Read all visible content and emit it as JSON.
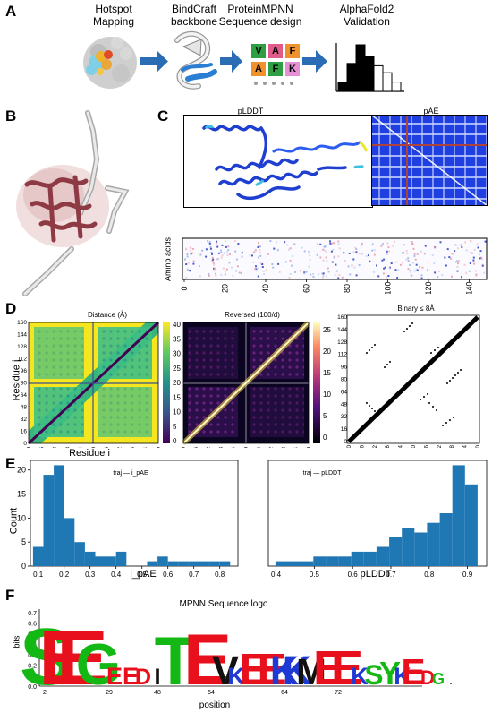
{
  "panels": {
    "a": "A",
    "b": "B",
    "c": "C",
    "d": "D",
    "e": "E",
    "f": "F"
  },
  "pipeline": {
    "steps": [
      {
        "line1": "Hotspot",
        "line2": "Mapping"
      },
      {
        "line1": "BindCraft",
        "line2": "backbone"
      },
      {
        "line1": "ProteinMPNN",
        "line2": "Sequence design"
      },
      {
        "line1": "AlphaFold2",
        "line2": "Validation"
      }
    ],
    "seq_letters": [
      {
        "ch": "V",
        "color": "#2ea043"
      },
      {
        "ch": "A",
        "color": "#e05a8a"
      },
      {
        "ch": "F",
        "color": "#f0922b"
      },
      {
        "ch": "A",
        "color": "#f0922b"
      },
      {
        "ch": "F",
        "color": "#2ea043"
      },
      {
        "ch": "K",
        "color": "#e58fd4"
      }
    ],
    "hist_values": [
      0.2,
      0.6,
      1.0,
      0.75,
      0.55,
      0.4,
      0.2
    ]
  },
  "panel_c": {
    "plddt_title": "pLDDT",
    "pae_title": "pAE",
    "aa_ylabel": "Amino acids",
    "aa_xticks": [
      "0",
      "20",
      "40",
      "60",
      "80",
      "100",
      "120",
      "140"
    ]
  },
  "panel_d": {
    "titles": [
      "Distance (Å)",
      "Reversed (100/d)",
      "Binary ≤ 8Å"
    ],
    "ticks": [
      "0",
      "16",
      "32",
      "48",
      "64",
      "80",
      "96",
      "112",
      "128",
      "144",
      "160"
    ],
    "cbar1": [
      "40",
      "35",
      "30",
      "25",
      "20",
      "15",
      "10",
      "5",
      "0"
    ],
    "cbar2": [
      "25",
      "20",
      "15",
      "10",
      "5",
      "0"
    ],
    "ylabel": "Residue j",
    "xlabel": "Residue i"
  },
  "chart_data": [
    {
      "type": "bar",
      "title": "",
      "legend": "traj — i_pAE",
      "xlabel": "i_pAE",
      "ylabel": "Count",
      "xlim": [
        0.07,
        0.87
      ],
      "ylim": [
        0,
        22
      ],
      "bin_width": 0.04,
      "x": [
        0.1,
        0.14,
        0.18,
        0.22,
        0.26,
        0.3,
        0.34,
        0.38,
        0.42,
        0.46,
        0.5,
        0.54,
        0.58,
        0.62,
        0.66,
        0.7,
        0.74,
        0.78,
        0.82
      ],
      "values": [
        4,
        19,
        21,
        10,
        5,
        3,
        2,
        2,
        3,
        0,
        0,
        1,
        2,
        1,
        1,
        1,
        1,
        1,
        1
      ],
      "xticks": [
        "0.1",
        "0.2",
        "0.3",
        "0.4",
        "0.5",
        "0.6",
        "0.7",
        "0.8"
      ],
      "yticks": [
        "0",
        "5",
        "10",
        "15",
        "20"
      ],
      "color": "#1f77b4"
    },
    {
      "type": "bar",
      "title": "",
      "legend": "traj — pLDDT",
      "xlabel": "pLDDT",
      "ylabel": "",
      "xlim": [
        0.38,
        0.95
      ],
      "ylim": [
        0,
        22
      ],
      "bin_width": 0.033,
      "x": [
        0.415,
        0.448,
        0.481,
        0.514,
        0.547,
        0.58,
        0.613,
        0.646,
        0.679,
        0.712,
        0.745,
        0.778,
        0.811,
        0.844,
        0.877,
        0.91
      ],
      "values": [
        1,
        1,
        1,
        2,
        2,
        2,
        3,
        3,
        4,
        6,
        8,
        7,
        9,
        11,
        21,
        17
      ],
      "xticks": [
        "0.4",
        "0.5",
        "0.6",
        "0.7",
        "0.8",
        "0.9"
      ],
      "yticks": [],
      "color": "#1f77b4"
    }
  ],
  "panel_f": {
    "title": "MPNN Sequence logo",
    "ylabel": "bits",
    "xlabel": "position",
    "yticks": [
      "0.7",
      "0.6",
      "0.5",
      "0.4",
      "0.3",
      "0.2",
      "0.1",
      "0.0"
    ],
    "xticks": [
      "2",
      "29",
      "48",
      "54",
      "64",
      "72"
    ],
    "letters": [
      "S",
      "E",
      "E",
      "G",
      "E",
      "E",
      "D",
      "I",
      "T",
      "E",
      "V",
      "K",
      "E",
      "E",
      "K",
      "K",
      "M",
      "E",
      "E",
      "K",
      "S",
      "Y",
      "K",
      "E",
      "D",
      "G",
      "."
    ]
  }
}
